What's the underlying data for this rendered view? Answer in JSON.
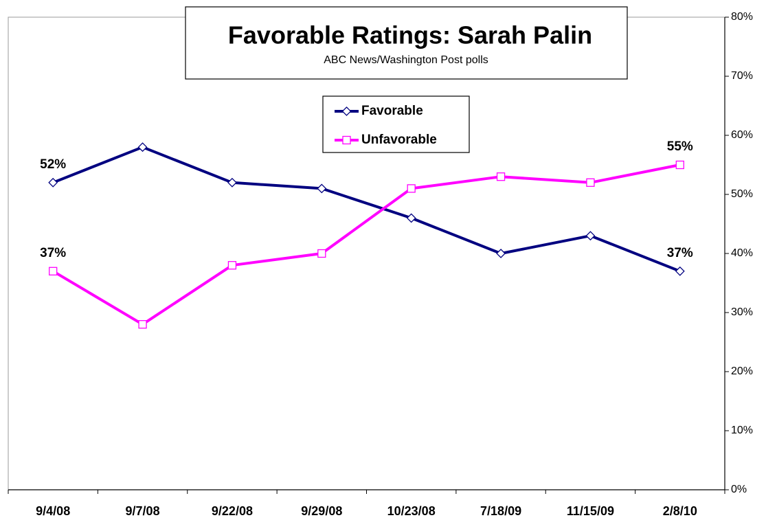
{
  "chart_data": {
    "type": "line",
    "title": "Favorable Ratings: Sarah Palin",
    "subtitle": "ABC News/Washington Post polls",
    "categories": [
      "9/4/08",
      "9/7/08",
      "9/22/08",
      "9/29/08",
      "10/23/08",
      "7/18/09",
      "11/15/09",
      "2/8/10"
    ],
    "series": [
      {
        "name": "Favorable",
        "color": "#000080",
        "marker": "diamond",
        "values": [
          52,
          58,
          52,
          51,
          46,
          40,
          43,
          37
        ],
        "value_labels": [
          "52%",
          null,
          null,
          null,
          null,
          null,
          null,
          "37%"
        ]
      },
      {
        "name": "Unfavorable",
        "color": "#ff00ff",
        "marker": "square",
        "values": [
          37,
          28,
          38,
          40,
          51,
          53,
          52,
          55
        ],
        "value_labels": [
          "37%",
          null,
          null,
          null,
          null,
          null,
          null,
          "55%"
        ]
      }
    ],
    "ylim": [
      0,
      80
    ],
    "yticks": [
      {
        "value": 0,
        "label": "0%"
      },
      {
        "value": 10,
        "label": "10%"
      },
      {
        "value": 20,
        "label": "20%"
      },
      {
        "value": 30,
        "label": "30%"
      },
      {
        "value": 40,
        "label": "40%"
      },
      {
        "value": 50,
        "label": "50%"
      },
      {
        "value": 60,
        "label": "60%"
      },
      {
        "value": 70,
        "label": "70%"
      },
      {
        "value": 80,
        "label": "80%"
      }
    ],
    "y_axis_side": "right",
    "grid": false
  }
}
